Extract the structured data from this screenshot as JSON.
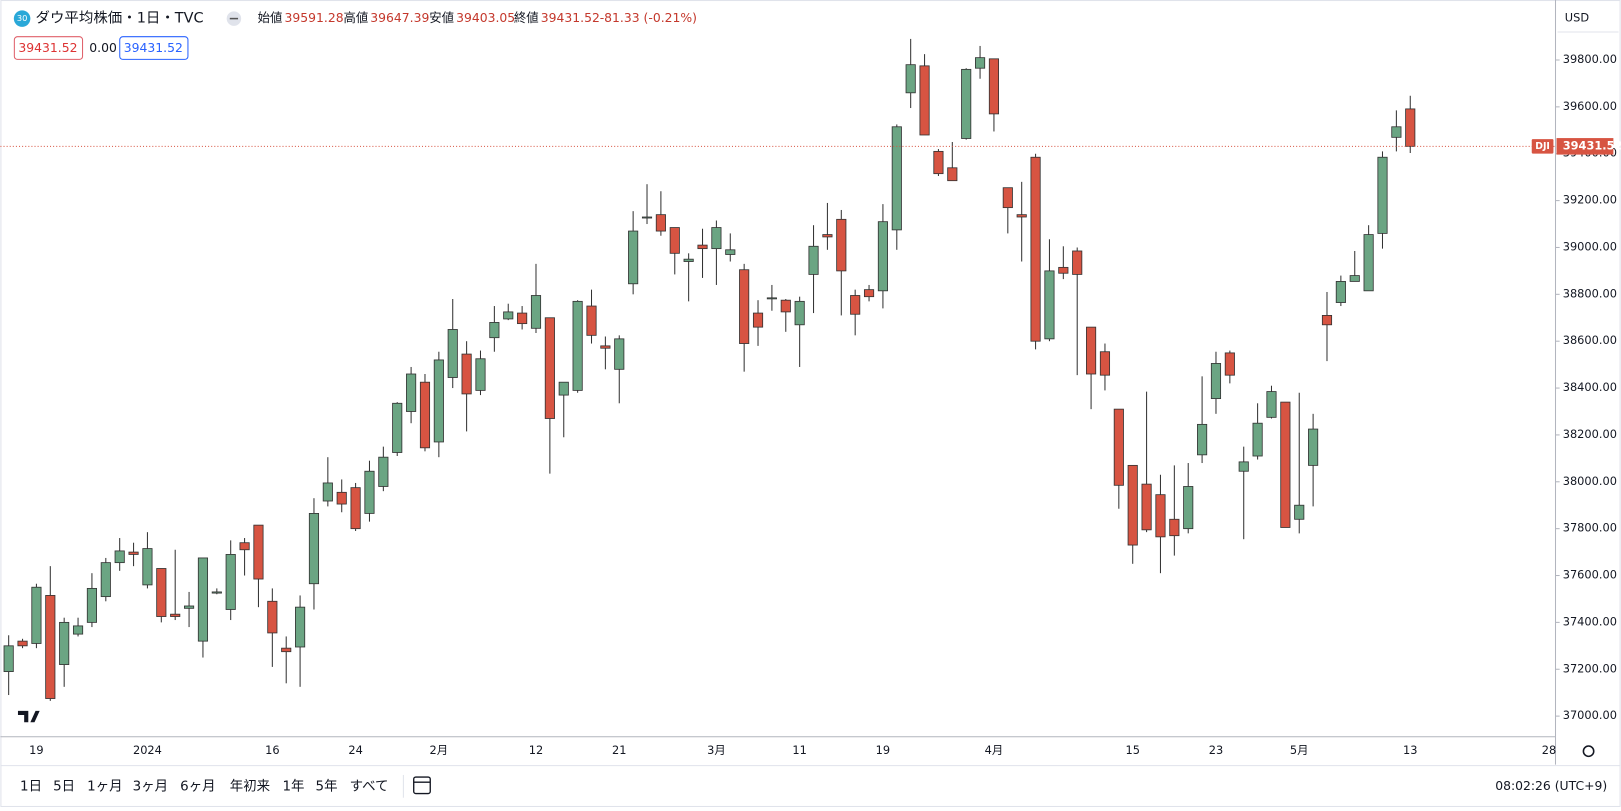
{
  "header": {
    "badge": "30",
    "title": "ダウ平均株価・1日・TVC",
    "ohlc_labels": [
      "始値",
      "高値",
      "安値",
      "終値"
    ],
    "change": "-81.33 (-0.21%)",
    "indicators": [
      "39431.52",
      "0.00",
      "39431.52"
    ]
  },
  "currency": "USD",
  "chart_data": {
    "type": "candlestick",
    "symbol": "DJI",
    "categories": [
      null,
      null,
      "19",
      null,
      null,
      null,
      null,
      null,
      null,
      null,
      "2024",
      null,
      null,
      null,
      null,
      null,
      null,
      null,
      null,
      "16",
      null,
      null,
      null,
      null,
      null,
      "24",
      null,
      null,
      null,
      null,
      null,
      "2月",
      null,
      null,
      null,
      null,
      null,
      null,
      "12",
      null,
      null,
      null,
      null,
      null,
      "21",
      null,
      null,
      null,
      null,
      null,
      null,
      "3月",
      null,
      null,
      null,
      null,
      null,
      "11",
      null,
      null,
      null,
      null,
      null,
      "19",
      null,
      null,
      null,
      null,
      null,
      null,
      null,
      "4月",
      null,
      null,
      null,
      null,
      null,
      null,
      null,
      null,
      null,
      "15",
      null,
      null,
      null,
      null,
      null,
      "23",
      null,
      null,
      null,
      null,
      null,
      "5月",
      null,
      null,
      null,
      null,
      null,
      null,
      null,
      "13",
      null,
      null,
      null,
      null,
      null,
      null,
      null,
      null,
      null,
      "28"
    ],
    "open": [
      37190,
      37320,
      37310,
      37515,
      37220,
      37350,
      37400,
      37510,
      37655,
      37700,
      37560,
      37630,
      37435,
      37460,
      37320,
      37525,
      37455,
      37740,
      37815,
      37490,
      37290,
      37295,
      37565,
      37918,
      37955,
      37975,
      37865,
      37980,
      38125,
      38300,
      38425,
      38170,
      38445,
      38545,
      38390,
      38615,
      38695,
      38720,
      38655,
      38700,
      38370,
      38390,
      38750,
      38580,
      38480,
      38845,
      39130,
      39140,
      39085,
      38940,
      39010,
      38995,
      38970,
      38905,
      38720,
      38785,
      38775,
      38670,
      38885,
      39055,
      39120,
      38795,
      38820,
      38815,
      39075,
      39660,
      39775,
      39410,
      39340,
      39465,
      39765,
      39805,
      39255,
      39140,
      39385,
      38610,
      38915,
      38985,
      38660,
      38555,
      38310,
      38070,
      37990,
      37945,
      37840,
      37800,
      38115,
      38355,
      38550,
      38045,
      38110,
      38275,
      38340,
      37840,
      38070,
      38710,
      38765,
      38855,
      38815,
      39060,
      39470,
      39591.28,
      null,
      null,
      null,
      null,
      null,
      null,
      null,
      null,
      null,
      null
    ],
    "high": [
      37345,
      37330,
      37565,
      37640,
      37420,
      37420,
      37610,
      37675,
      37760,
      37740,
      37785,
      37630,
      37710,
      37530,
      37675,
      37545,
      37750,
      37760,
      37815,
      37545,
      37340,
      37515,
      37930,
      38105,
      38010,
      37995,
      38090,
      38150,
      38340,
      38490,
      38460,
      38555,
      38780,
      38600,
      38560,
      38750,
      38760,
      38750,
      38930,
      38700,
      38425,
      38775,
      38820,
      38620,
      38625,
      39155,
      39270,
      39240,
      39085,
      38975,
      39080,
      39115,
      39060,
      38930,
      38775,
      38840,
      38780,
      38790,
      39095,
      39190,
      39160,
      38820,
      38840,
      39185,
      39525,
      39890,
      39825,
      39420,
      39450,
      39765,
      39860,
      39805,
      39255,
      39280,
      39400,
      39035,
      39005,
      39000,
      38660,
      38590,
      38310,
      38070,
      38385,
      38030,
      38070,
      38080,
      38450,
      38555,
      38560,
      38150,
      38335,
      38410,
      38340,
      38380,
      38290,
      38810,
      38880,
      38985,
      39095,
      39410,
      39585,
      39647.39,
      null,
      null,
      null,
      null,
      null,
      null,
      null,
      null,
      null,
      null
    ],
    "low": [
      37090,
      37290,
      37290,
      37065,
      37125,
      37340,
      37380,
      37490,
      37620,
      37640,
      37545,
      37400,
      37410,
      37380,
      37250,
      37520,
      37410,
      37600,
      37465,
      37210,
      37140,
      37125,
      37455,
      37895,
      37870,
      37790,
      37830,
      37960,
      38110,
      38250,
      38130,
      38105,
      38400,
      38215,
      38370,
      38555,
      38690,
      38650,
      38635,
      38035,
      38190,
      38380,
      38590,
      38480,
      38335,
      38800,
      39100,
      39050,
      38885,
      38770,
      38870,
      38840,
      38940,
      38470,
      38580,
      38730,
      38640,
      38490,
      38720,
      38990,
      38710,
      38625,
      38770,
      38740,
      38990,
      39595,
      39480,
      39305,
      39285,
      39460,
      39720,
      39495,
      39060,
      38940,
      38565,
      38600,
      38865,
      38455,
      38310,
      38390,
      37885,
      37650,
      37785,
      37610,
      37685,
      37780,
      38080,
      38290,
      38420,
      37755,
      38095,
      38270,
      37805,
      37780,
      37895,
      38515,
      38750,
      38855,
      38815,
      38995,
      39410,
      39403.05,
      null,
      null,
      null,
      null,
      null,
      null,
      null,
      null,
      null,
      null
    ],
    "close": [
      37300,
      37300,
      37550,
      37075,
      37400,
      37385,
      37545,
      37655,
      37705,
      37690,
      37715,
      37425,
      37425,
      37470,
      37675,
      37530,
      37690,
      37710,
      37585,
      37355,
      37275,
      37465,
      37865,
      37995,
      37905,
      37800,
      38045,
      38105,
      38335,
      38460,
      38145,
      38520,
      38650,
      38375,
      38525,
      38680,
      38725,
      38675,
      38795,
      38270,
      38425,
      38770,
      38625,
      38570,
      38610,
      39070,
      39130,
      39070,
      38975,
      38950,
      38995,
      39085,
      38990,
      38590,
      38660,
      38785,
      38725,
      38770,
      39005,
      39045,
      38900,
      38715,
      38790,
      39110,
      39515,
      39780,
      39480,
      39315,
      39285,
      39760,
      39810,
      39570,
      39170,
      39130,
      38600,
      38900,
      38890,
      38885,
      38460,
      38455,
      37985,
      37730,
      37795,
      37765,
      37770,
      37980,
      38245,
      38505,
      38455,
      38085,
      38250,
      38385,
      37805,
      37900,
      38225,
      38670,
      38855,
      38880,
      39055,
      39385,
      39515,
      39431.52,
      null,
      null,
      null,
      null,
      null,
      null,
      null,
      null,
      null,
      null
    ],
    "up_color": "#6ba583",
    "down_color": "#d75442",
    "ylim": [
      36912,
      40034
    ],
    "yticks": [
      {
        "value": 37000,
        "label": "37000.00"
      },
      {
        "value": 37200,
        "label": "37200.00"
      },
      {
        "value": 37400,
        "label": "37400.00"
      },
      {
        "value": 37600,
        "label": "37600.00"
      },
      {
        "value": 37800,
        "label": "37800.00"
      },
      {
        "value": 38000,
        "label": "38000.00"
      },
      {
        "value": 38200,
        "label": "38200.00"
      },
      {
        "value": 38400,
        "label": "38400.00"
      },
      {
        "value": 38600,
        "label": "38600.00"
      },
      {
        "value": 38800,
        "label": "38800.00"
      },
      {
        "value": 39000,
        "label": "39000.00"
      },
      {
        "value": 39200,
        "label": "39200.00"
      },
      {
        "value": 39400,
        "label": "39400.00"
      },
      {
        "value": 39600,
        "label": "39600.00"
      },
      {
        "value": 39800,
        "label": "39800.00"
      }
    ],
    "grid": false
  },
  "toolbar": {
    "ranges": [
      "1日",
      "5日",
      "1ヶ月",
      "3ヶ月",
      "6ヶ月",
      "年初来",
      "1年",
      "5年",
      "すべて"
    ],
    "clock": "08:02:26 (UTC+9)"
  }
}
